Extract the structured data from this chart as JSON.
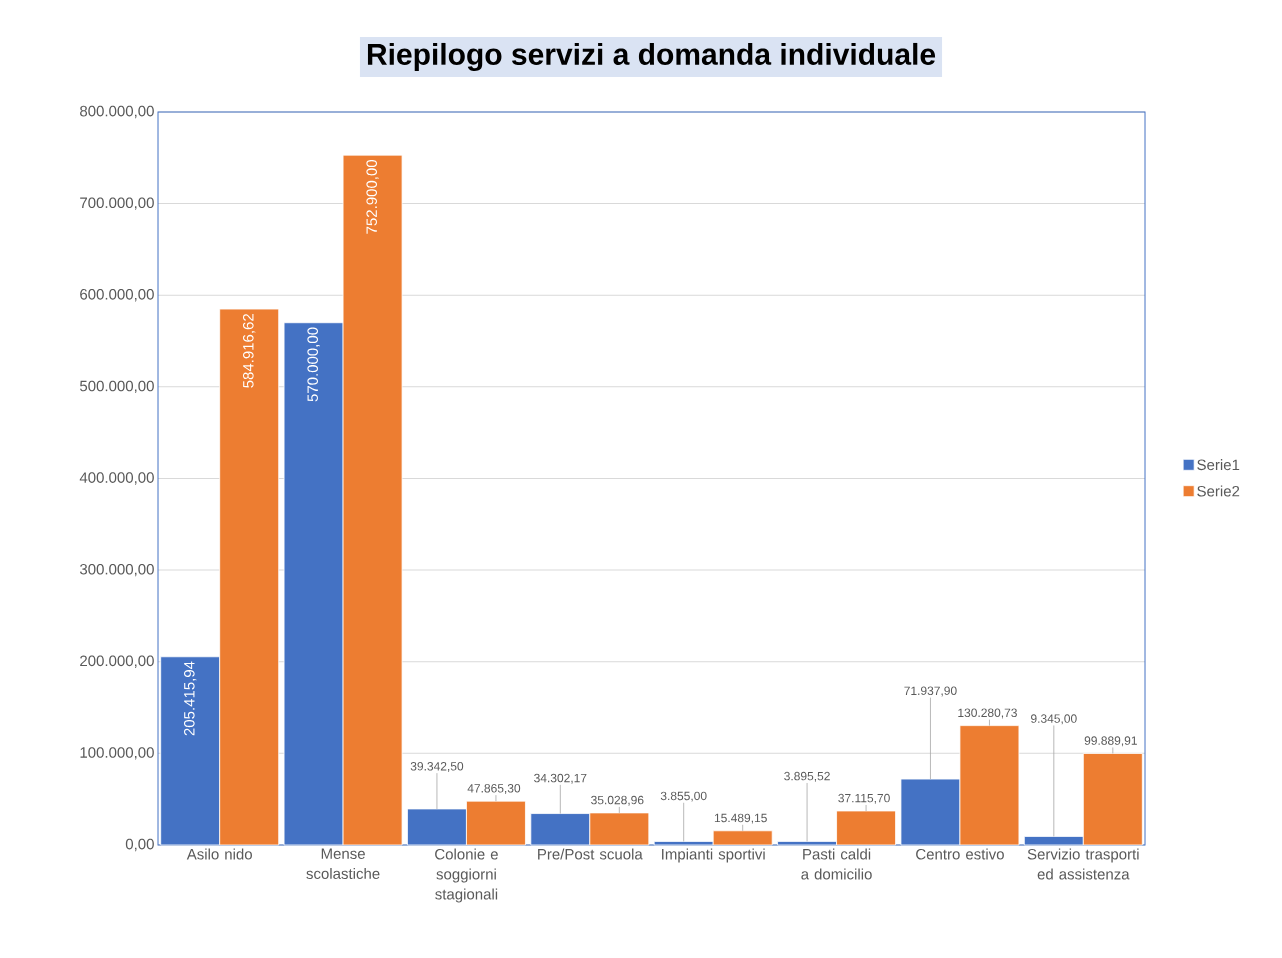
{
  "chart_data": {
    "type": "bar",
    "title": "Riepilogo servizi a domanda individuale",
    "categories": [
      "Asilo nido",
      "Mense scolastiche",
      "Colonie e soggiorni stagionali",
      "Pre/Post scuola",
      "Impianti sportivi",
      "Pasti caldi a domicilio",
      "Centro estivo",
      "Servizio trasporti ed assistenza"
    ],
    "series": [
      {
        "name": "Serie1",
        "color": "#4472c4",
        "values": [
          205415.94,
          570000.0,
          39342.5,
          34302.17,
          3855.0,
          3895.52,
          71937.9,
          9345.0
        ],
        "value_labels": [
          "205.415,94",
          "570.000,00",
          "39.342,50",
          "34.302,17",
          "3.855,00",
          "3.895,52",
          "71.937,90",
          "9.345,00"
        ]
      },
      {
        "name": "Serie2",
        "color": "#ed7d31",
        "values": [
          584916.62,
          752900.0,
          47865.3,
          35028.96,
          15489.15,
          37115.7,
          130280.73,
          99889.91
        ],
        "value_labels": [
          "584.916,62",
          "752.900,00",
          "47.865,30",
          "35.028,96",
          "15.489,15",
          "37.115,70",
          "130.280,73",
          "99.889,91"
        ]
      }
    ],
    "ylim": [
      0,
      800000
    ],
    "yticks": [
      {
        "value": 0,
        "label": "0,00"
      },
      {
        "value": 100000,
        "label": "100.000,00"
      },
      {
        "value": 200000,
        "label": "200.000,00"
      },
      {
        "value": 300000,
        "label": "300.000,00"
      },
      {
        "value": 400000,
        "label": "400.000,00"
      },
      {
        "value": 500000,
        "label": "500.000,00"
      },
      {
        "value": 600000,
        "label": "600.000,00"
      },
      {
        "value": 700000,
        "label": "700.000,00"
      },
      {
        "value": 800000,
        "label": "800.000,00"
      }
    ],
    "grid": "y",
    "legend": "right"
  }
}
